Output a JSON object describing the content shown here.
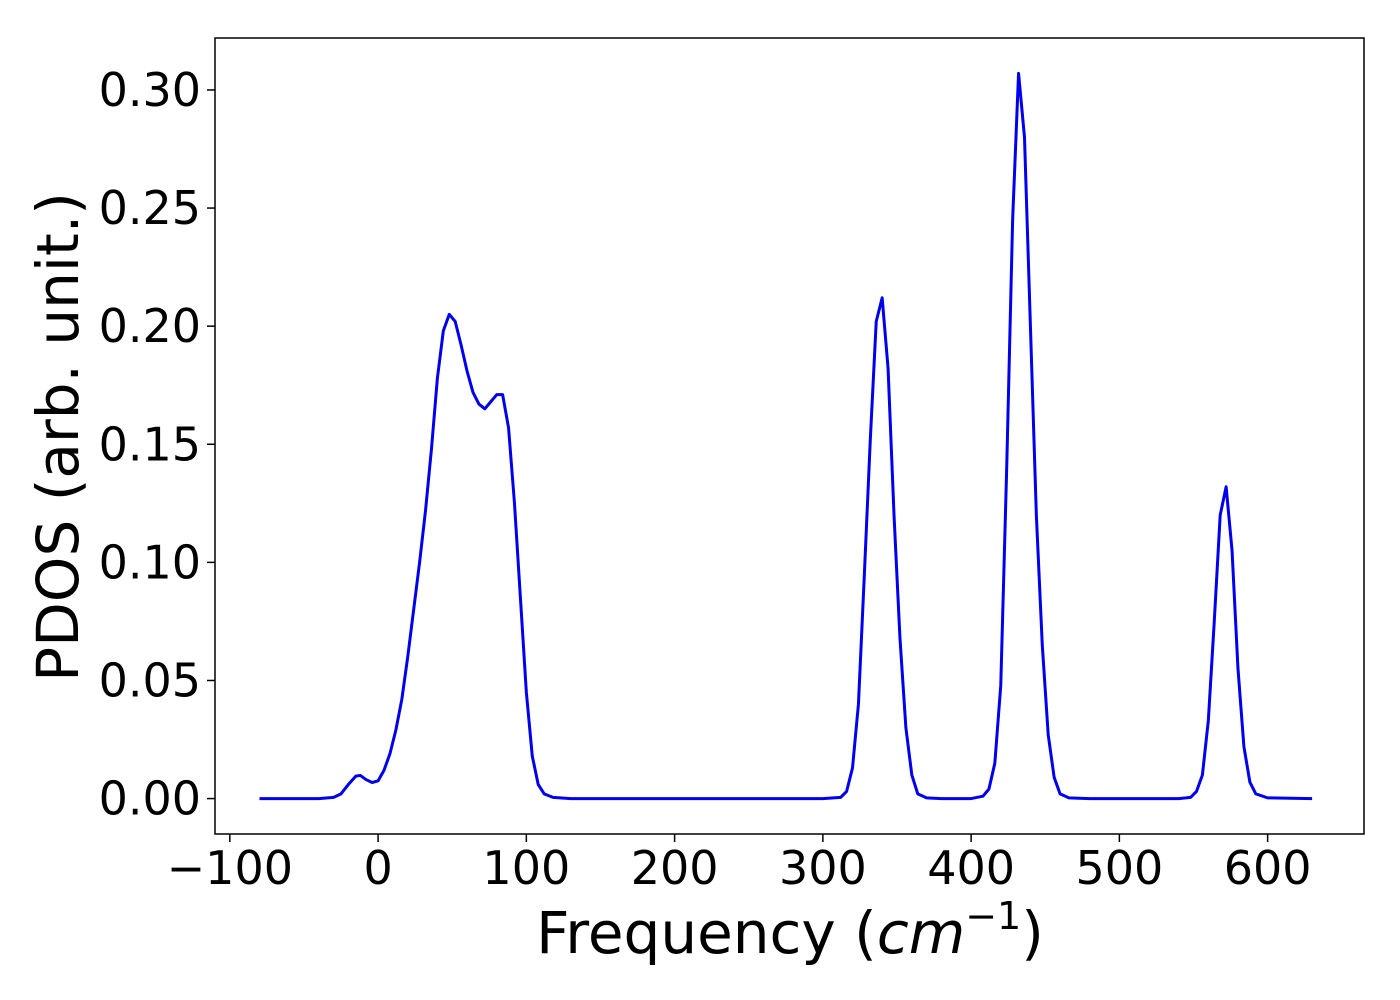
{
  "chart_data": {
    "type": "line",
    "title": "",
    "xlabel": "Frequency (",
    "xlabel_math": "cm",
    "xlabel_sup": "−1",
    "xlabel_close": ")",
    "ylabel": "PDOS (arb. unit.)",
    "xlim": [
      -110,
      665
    ],
    "ylim": [
      -0.015,
      0.322
    ],
    "grid": false,
    "line_color": "#0000ee",
    "x_ticks": [
      -100,
      0,
      100,
      200,
      300,
      400,
      500,
      600
    ],
    "x_tick_labels": [
      "−100",
      "0",
      "100",
      "200",
      "300",
      "400",
      "500",
      "600"
    ],
    "y_ticks": [
      0.0,
      0.05,
      0.1,
      0.15,
      0.2,
      0.25,
      0.3
    ],
    "y_tick_labels": [
      "0.00",
      "0.05",
      "0.10",
      "0.15",
      "0.20",
      "0.25",
      "0.30"
    ],
    "series": [
      {
        "x": [
          -80,
          -60,
          -40,
          -30,
          -25,
          -20,
          -15,
          -12,
          -8,
          -4,
          0,
          4,
          8,
          12,
          16,
          20,
          24,
          28,
          32,
          36,
          40,
          44,
          48,
          52,
          56,
          60,
          64,
          68,
          72,
          76,
          80,
          84,
          88,
          92,
          96,
          100,
          104,
          108,
          112,
          118,
          130,
          160,
          200,
          250,
          300,
          312,
          316,
          320,
          324,
          328,
          332,
          336,
          340,
          344,
          348,
          352,
          356,
          360,
          364,
          370,
          380,
          400,
          408,
          412,
          416,
          420,
          424,
          428,
          432,
          436,
          440,
          444,
          448,
          452,
          456,
          460,
          466,
          480,
          520,
          540,
          548,
          552,
          556,
          560,
          564,
          568,
          572,
          576,
          580,
          584,
          588,
          592,
          600,
          630
        ],
        "y": [
          0,
          0,
          0,
          0.0005,
          0.002,
          0.006,
          0.0095,
          0.0098,
          0.008,
          0.0068,
          0.0075,
          0.012,
          0.019,
          0.029,
          0.042,
          0.06,
          0.08,
          0.1,
          0.122,
          0.148,
          0.178,
          0.198,
          0.205,
          0.202,
          0.192,
          0.181,
          0.172,
          0.167,
          0.165,
          0.168,
          0.171,
          0.171,
          0.157,
          0.125,
          0.085,
          0.045,
          0.018,
          0.006,
          0.002,
          0.0005,
          0,
          0,
          0,
          0,
          0,
          0.0005,
          0.003,
          0.013,
          0.04,
          0.095,
          0.152,
          0.202,
          0.212,
          0.182,
          0.12,
          0.068,
          0.03,
          0.01,
          0.002,
          0.0003,
          0,
          0,
          0.001,
          0.004,
          0.015,
          0.048,
          0.14,
          0.245,
          0.307,
          0.28,
          0.2,
          0.12,
          0.065,
          0.027,
          0.009,
          0.002,
          0.0003,
          0,
          0,
          0,
          0.0005,
          0.003,
          0.01,
          0.033,
          0.075,
          0.12,
          0.132,
          0.105,
          0.055,
          0.022,
          0.007,
          0.002,
          0.0003,
          0
        ]
      }
    ]
  }
}
